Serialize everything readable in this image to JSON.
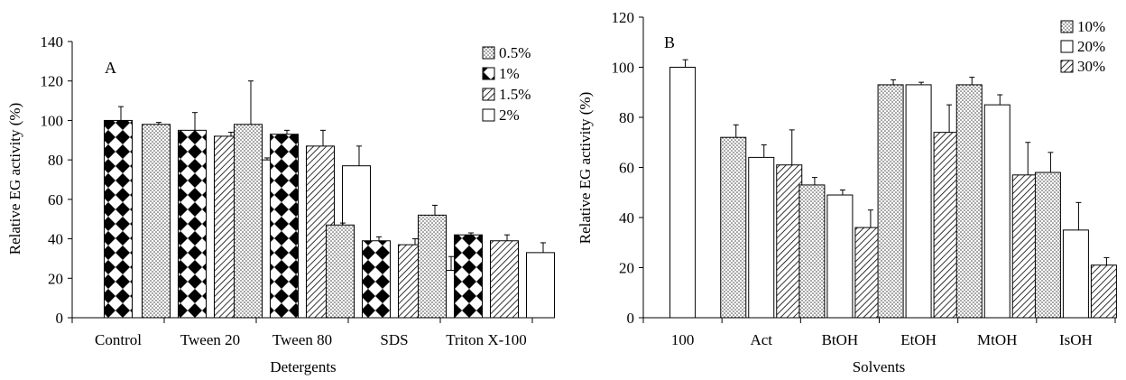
{
  "chart_data": [
    {
      "type": "bar",
      "panel_label": "A",
      "xlabel": "Detergents",
      "ylabel": "Relative EG activity (%)",
      "ylim": [
        0,
        140
      ],
      "yticks": [
        0,
        20,
        40,
        60,
        80,
        100,
        120,
        140
      ],
      "grid": false,
      "legend_position": "top-right",
      "categories": [
        "Control",
        "Tween 20",
        "Tween 80",
        "SDS",
        "Triton X-100"
      ],
      "series": [
        {
          "name": "0.5%",
          "pattern": "dots",
          "values": [
            null,
            98,
            98,
            47,
            52
          ],
          "errors": [
            null,
            1,
            22,
            1,
            5
          ]
        },
        {
          "name": "1%",
          "pattern": "diamonds",
          "values": [
            100,
            95,
            93,
            39,
            42
          ],
          "errors": [
            7,
            9,
            2,
            2,
            1
          ]
        },
        {
          "name": "1.5%",
          "pattern": "hatch",
          "values": [
            null,
            92,
            87,
            37,
            39
          ],
          "errors": [
            null,
            2,
            8,
            3,
            3
          ]
        },
        {
          "name": "2%",
          "pattern": "white",
          "values": [
            null,
            80,
            77,
            24,
            33
          ],
          "errors": [
            null,
            1,
            10,
            7,
            5
          ]
        }
      ]
    },
    {
      "type": "bar",
      "panel_label": "B",
      "xlabel": "Solvents",
      "ylabel": "Relative EG activity (%)",
      "ylim": [
        0,
        120
      ],
      "yticks": [
        0,
        20,
        40,
        60,
        80,
        100,
        120
      ],
      "grid": false,
      "legend_position": "top-right",
      "categories": [
        "100",
        "Act",
        "BtOH",
        "EtOH",
        "MtOH",
        "IsOH"
      ],
      "series": [
        {
          "name": "10%",
          "pattern": "dots",
          "values": [
            null,
            72,
            53,
            93,
            93,
            58
          ],
          "errors": [
            null,
            5,
            3,
            2,
            3,
            8
          ]
        },
        {
          "name": "20%",
          "pattern": "white",
          "values": [
            100,
            64,
            49,
            93,
            85,
            35
          ],
          "errors": [
            3,
            5,
            2,
            1,
            4,
            11
          ]
        },
        {
          "name": "30%",
          "pattern": "hatch",
          "values": [
            null,
            61,
            36,
            74,
            57,
            21
          ],
          "errors": [
            null,
            14,
            7,
            11,
            13,
            3
          ]
        }
      ]
    }
  ]
}
